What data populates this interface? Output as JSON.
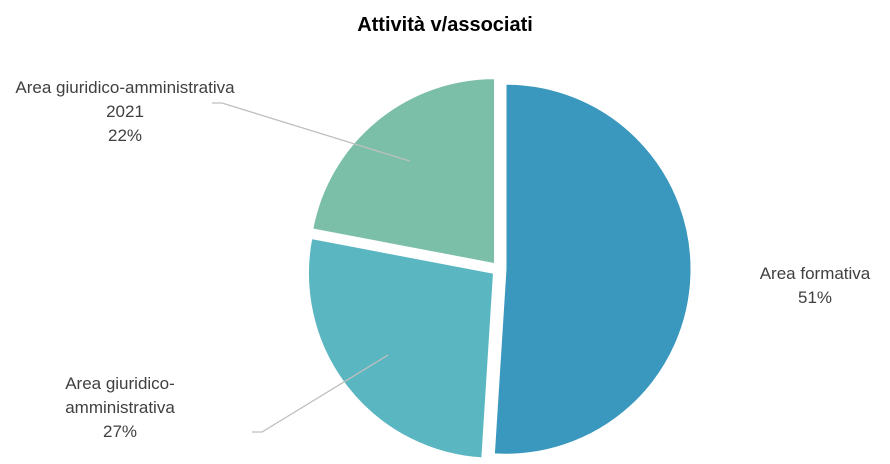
{
  "chart_data": {
    "type": "pie",
    "title": "Attività v/associati",
    "categories": [
      "Area formativa",
      "Area giuridico-amministrativa",
      "Area giuridico-amministrativa 2021"
    ],
    "values": [
      51,
      27,
      22
    ],
    "value_labels": [
      "51%",
      "27%",
      "22%"
    ],
    "colors": [
      "#3a97bd",
      "#5ab6c1",
      "#7bbfa9"
    ]
  }
}
